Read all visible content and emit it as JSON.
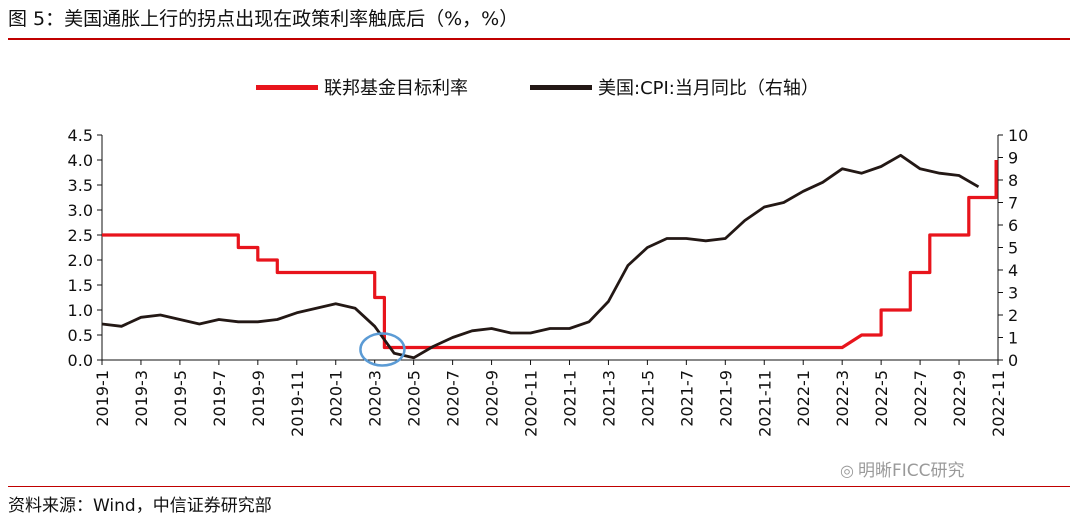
{
  "figure": {
    "title": "图 5：美国通胀上行的拐点出现在政策利率触底后（%，%）",
    "source": "资料来源：Wind，中信证券研究部",
    "watermark": "明晰FICC研究"
  },
  "chart_data": {
    "type": "line",
    "title": "",
    "xlabel": "",
    "ylabel": "",
    "legend_position": "top-center",
    "grid": false,
    "x_tick_labels": [
      "2019-1",
      "2019-3",
      "2019-5",
      "2019-7",
      "2019-9",
      "2019-11",
      "2020-1",
      "2020-3",
      "2020-5",
      "2020-7",
      "2020-9",
      "2020-11",
      "2021-1",
      "2021-3",
      "2021-5",
      "2021-7",
      "2021-9",
      "2021-11",
      "2022-1",
      "2022-3",
      "2022-5",
      "2022-7",
      "2022-9",
      "2022-11"
    ],
    "y_left": {
      "min": 0,
      "max": 4.5,
      "ticks": [
        "0.0",
        "0.5",
        "1.0",
        "1.5",
        "2.0",
        "2.5",
        "3.0",
        "3.5",
        "4.0",
        "4.5"
      ]
    },
    "y_right": {
      "min": 0,
      "max": 10,
      "ticks": [
        "0",
        "1",
        "2",
        "3",
        "4",
        "5",
        "6",
        "7",
        "8",
        "9",
        "10"
      ]
    },
    "series": [
      {
        "name": "联邦基金目标利率",
        "axis": "left",
        "color": "#e8141c",
        "style": "step",
        "points": [
          [
            "2019-01",
            2.5
          ],
          [
            "2019-08",
            2.5
          ],
          [
            "2019-08",
            2.25
          ],
          [
            "2019-09",
            2.25
          ],
          [
            "2019-09",
            2.0
          ],
          [
            "2019-10",
            2.0
          ],
          [
            "2019-10",
            1.75
          ],
          [
            "2020-03",
            1.75
          ],
          [
            "2020-03",
            1.25
          ],
          [
            "2020-03.5",
            1.25
          ],
          [
            "2020-03.5",
            0.25
          ],
          [
            "2022-03",
            0.25
          ],
          [
            "2022-04",
            0.5
          ],
          [
            "2022-05",
            0.5
          ],
          [
            "2022-05",
            1.0
          ],
          [
            "2022-06",
            1.0
          ],
          [
            "2022-06.5",
            1.0
          ],
          [
            "2022-06.5",
            1.75
          ],
          [
            "2022-07.5",
            1.75
          ],
          [
            "2022-07.5",
            2.5
          ],
          [
            "2022-09.5",
            2.5
          ],
          [
            "2022-09.5",
            3.25
          ],
          [
            "2022-10.9",
            3.25
          ],
          [
            "2022-10.9",
            4.0
          ]
        ]
      },
      {
        "name": "美国:CPI:当月同比（右轴）",
        "axis": "right",
        "color": "#231815",
        "style": "line",
        "points": [
          [
            "2019-01",
            1.6
          ],
          [
            "2019-02",
            1.5
          ],
          [
            "2019-03",
            1.9
          ],
          [
            "2019-04",
            2.0
          ],
          [
            "2019-05",
            1.8
          ],
          [
            "2019-06",
            1.6
          ],
          [
            "2019-07",
            1.8
          ],
          [
            "2019-08",
            1.7
          ],
          [
            "2019-09",
            1.7
          ],
          [
            "2019-10",
            1.8
          ],
          [
            "2019-11",
            2.1
          ],
          [
            "2019-12",
            2.3
          ],
          [
            "2020-01",
            2.5
          ],
          [
            "2020-02",
            2.3
          ],
          [
            "2020-03",
            1.5
          ],
          [
            "2020-04",
            0.3
          ],
          [
            "2020-05",
            0.1
          ],
          [
            "2020-06",
            0.6
          ],
          [
            "2020-07",
            1.0
          ],
          [
            "2020-08",
            1.3
          ],
          [
            "2020-09",
            1.4
          ],
          [
            "2020-10",
            1.2
          ],
          [
            "2020-11",
            1.2
          ],
          [
            "2020-12",
            1.4
          ],
          [
            "2021-01",
            1.4
          ],
          [
            "2021-02",
            1.7
          ],
          [
            "2021-03",
            2.6
          ],
          [
            "2021-04",
            4.2
          ],
          [
            "2021-05",
            5.0
          ],
          [
            "2021-06",
            5.4
          ],
          [
            "2021-07",
            5.4
          ],
          [
            "2021-08",
            5.3
          ],
          [
            "2021-09",
            5.4
          ],
          [
            "2021-10",
            6.2
          ],
          [
            "2021-11",
            6.8
          ],
          [
            "2021-12",
            7.0
          ],
          [
            "2022-01",
            7.5
          ],
          [
            "2022-02",
            7.9
          ],
          [
            "2022-03",
            8.5
          ],
          [
            "2022-04",
            8.3
          ],
          [
            "2022-05",
            8.6
          ],
          [
            "2022-06",
            9.1
          ],
          [
            "2022-07",
            8.5
          ],
          [
            "2022-08",
            8.3
          ],
          [
            "2022-09",
            8.2
          ],
          [
            "2022-10",
            7.7
          ]
        ]
      }
    ],
    "annotations": [
      {
        "type": "circle",
        "color": "#5b9bd5",
        "x": "2020-03.5",
        "y_left": 0.25,
        "note": ""
      }
    ]
  }
}
